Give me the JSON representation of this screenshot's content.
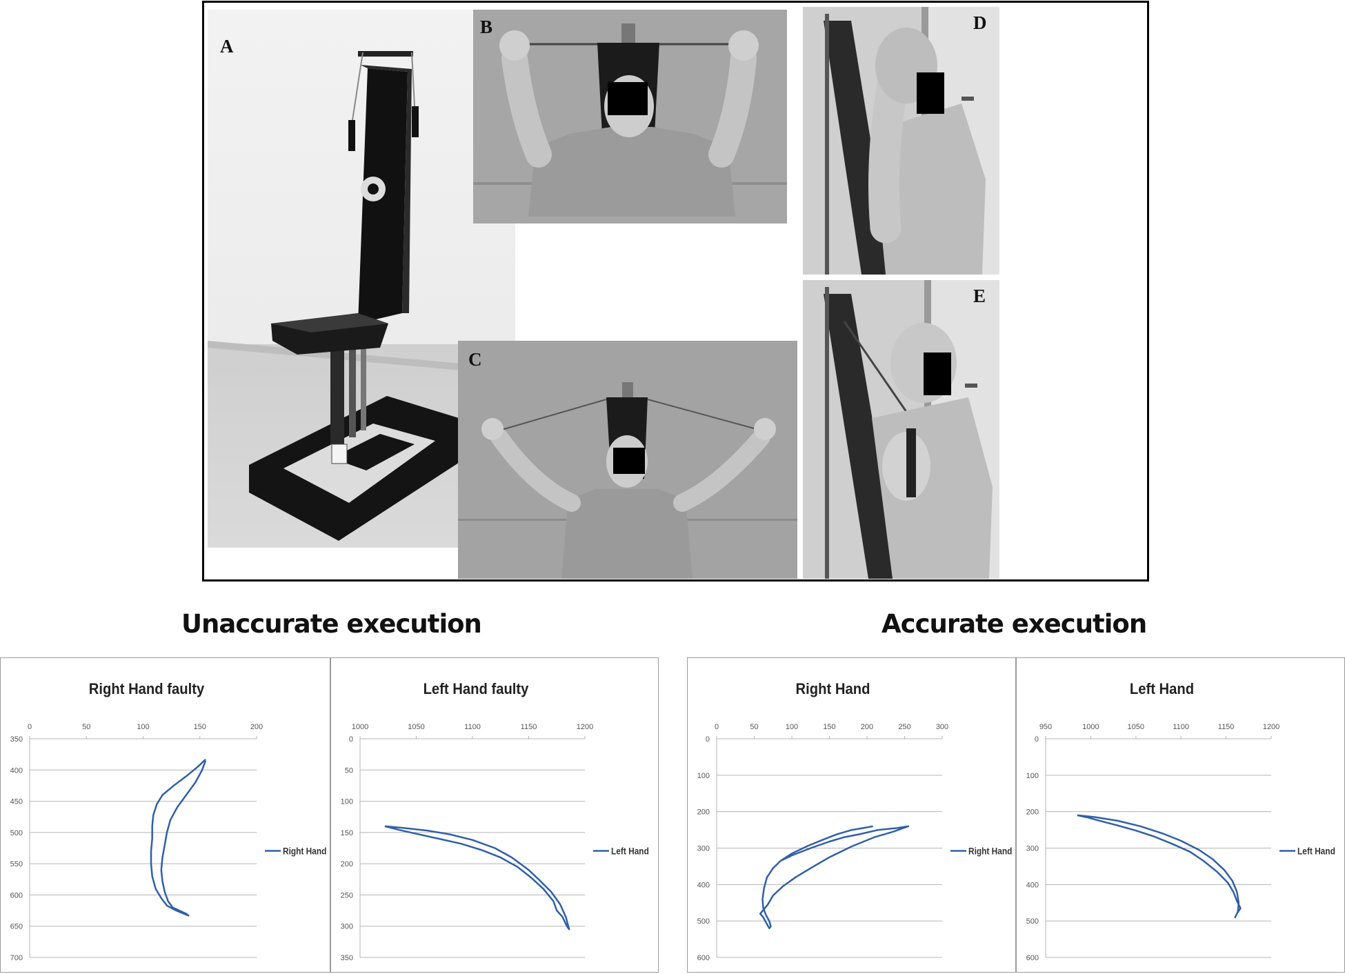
{
  "figure": {
    "panel_labels": [
      "A",
      "B",
      "C",
      "D",
      "E"
    ],
    "section_titles": {
      "left": "Unaccurate execution",
      "right": "Accurate execution"
    }
  },
  "chart_data": [
    {
      "type": "scatter",
      "title": "Right Hand faulty",
      "legend": "Right Hand",
      "legend_position": "right",
      "grid": true,
      "xlim": [
        0,
        200
      ],
      "ylim": [
        350,
        700
      ],
      "x_ticks": [
        0,
        50,
        100,
        150,
        200
      ],
      "y_ticks": [
        350,
        400,
        450,
        500,
        550,
        600,
        650,
        700
      ],
      "y_inverted": true,
      "x_axis_position": "top",
      "color": "#2f5fa8",
      "series": [
        {
          "name": "Right Hand",
          "points": [
            [
              155,
              383
            ],
            [
              148,
              395
            ],
            [
              138,
              410
            ],
            [
              127,
              425
            ],
            [
              117,
              440
            ],
            [
              112,
              455
            ],
            [
              109,
              472
            ],
            [
              108,
              490
            ],
            [
              108,
              510
            ],
            [
              107,
              530
            ],
            [
              107,
              550
            ],
            [
              108,
              570
            ],
            [
              111,
              590
            ],
            [
              116,
              605
            ],
            [
              121,
              617
            ],
            [
              128,
              624
            ],
            [
              136,
              630
            ],
            [
              140,
              633
            ],
            [
              138,
              630
            ],
            [
              132,
              625
            ],
            [
              126,
              620
            ],
            [
              122,
              610
            ],
            [
              119,
              595
            ],
            [
              117,
              578
            ],
            [
              116,
              560
            ],
            [
              117,
              540
            ],
            [
              119,
              520
            ],
            [
              121,
              500
            ],
            [
              124,
              480
            ],
            [
              130,
              460
            ],
            [
              138,
              440
            ],
            [
              146,
              420
            ],
            [
              152,
              400
            ],
            [
              155,
              385
            ]
          ]
        }
      ]
    },
    {
      "type": "scatter",
      "title": "Left Hand faulty",
      "legend": "Left Hand",
      "legend_position": "right",
      "grid": true,
      "xlim": [
        1000,
        1200
      ],
      "ylim": [
        0,
        350
      ],
      "x_ticks": [
        1000,
        1050,
        1100,
        1150,
        1200
      ],
      "y_ticks": [
        0,
        50,
        100,
        150,
        200,
        250,
        300,
        350
      ],
      "y_inverted": true,
      "x_axis_position": "top",
      "color": "#2f5fa8",
      "series": [
        {
          "name": "Left Hand",
          "points": [
            [
              1022,
              140
            ],
            [
              1040,
              143
            ],
            [
              1060,
              147
            ],
            [
              1080,
              153
            ],
            [
              1100,
              162
            ],
            [
              1120,
              175
            ],
            [
              1135,
              190
            ],
            [
              1150,
              210
            ],
            [
              1160,
              227
            ],
            [
              1170,
              245
            ],
            [
              1178,
              265
            ],
            [
              1183,
              285
            ],
            [
              1186,
              305
            ],
            [
              1184,
              300
            ],
            [
              1180,
              285
            ],
            [
              1175,
              275
            ],
            [
              1172,
              260
            ],
            [
              1163,
              240
            ],
            [
              1152,
              222
            ],
            [
              1140,
              205
            ],
            [
              1125,
              190
            ],
            [
              1108,
              178
            ],
            [
              1090,
              168
            ],
            [
              1070,
              160
            ],
            [
              1050,
              152
            ],
            [
              1035,
              146
            ],
            [
              1022,
              140
            ]
          ]
        }
      ]
    },
    {
      "type": "scatter",
      "title": "Right Hand",
      "legend": "Right Hand",
      "legend_position": "right",
      "grid": true,
      "xlim": [
        0,
        300
      ],
      "ylim": [
        0,
        600
      ],
      "x_ticks": [
        0,
        50,
        100,
        150,
        200,
        250,
        300
      ],
      "y_ticks": [
        0,
        100,
        200,
        300,
        400,
        500,
        600
      ],
      "y_inverted": true,
      "x_axis_position": "top",
      "color": "#2f5fa8",
      "series": [
        {
          "name": "Right Hand",
          "points": [
            [
              208,
              240
            ],
            [
              195,
              245
            ],
            [
              180,
              250
            ],
            [
              160,
              262
            ],
            [
              140,
              278
            ],
            [
              120,
              295
            ],
            [
              100,
              315
            ],
            [
              85,
              335
            ],
            [
              75,
              355
            ],
            [
              67,
              380
            ],
            [
              63,
              410
            ],
            [
              61,
              440
            ],
            [
              62,
              465
            ],
            [
              66,
              485
            ],
            [
              70,
              500
            ],
            [
              72,
              515
            ],
            [
              70,
              520
            ],
            [
              66,
              505
            ],
            [
              62,
              490
            ],
            [
              58,
              480
            ],
            [
              62,
              470
            ],
            [
              68,
              455
            ],
            [
              75,
              430
            ],
            [
              88,
              405
            ],
            [
              105,
              380
            ],
            [
              125,
              355
            ],
            [
              150,
              325
            ],
            [
              180,
              295
            ],
            [
              210,
              270
            ],
            [
              235,
              255
            ],
            [
              255,
              240
            ],
            [
              240,
              245
            ],
            [
              215,
              250
            ],
            [
              190,
              262
            ],
            [
              170,
              270
            ],
            [
              150,
              282
            ],
            [
              125,
              300
            ],
            [
              100,
              320
            ],
            [
              85,
              335
            ]
          ]
        }
      ]
    },
    {
      "type": "scatter",
      "title": "Left Hand",
      "legend": "Left Hand",
      "legend_position": "right",
      "grid": true,
      "xlim": [
        950,
        1200
      ],
      "ylim": [
        0,
        600
      ],
      "x_ticks": [
        950,
        1000,
        1050,
        1100,
        1150,
        1200
      ],
      "y_ticks": [
        0,
        100,
        200,
        300,
        400,
        500,
        600
      ],
      "y_inverted": true,
      "x_axis_position": "top",
      "color": "#2f5fa8",
      "series": [
        {
          "name": "Left Hand",
          "points": [
            [
              985,
              210
            ],
            [
              1005,
              215
            ],
            [
              1030,
              225
            ],
            [
              1055,
              240
            ],
            [
              1080,
              260
            ],
            [
              1100,
              280
            ],
            [
              1120,
              305
            ],
            [
              1135,
              330
            ],
            [
              1148,
              360
            ],
            [
              1157,
              390
            ],
            [
              1162,
              420
            ],
            [
              1164,
              450
            ],
            [
              1163,
              475
            ],
            [
              1160,
              490
            ],
            [
              1162,
              480
            ],
            [
              1166,
              465
            ],
            [
              1162,
              445
            ],
            [
              1158,
              420
            ],
            [
              1152,
              395
            ],
            [
              1140,
              365
            ],
            [
              1125,
              335
            ],
            [
              1110,
              310
            ],
            [
              1090,
              288
            ],
            [
              1070,
              268
            ],
            [
              1050,
              252
            ],
            [
              1030,
              238
            ],
            [
              1010,
              225
            ],
            [
              995,
              215
            ],
            [
              985,
              210
            ]
          ]
        }
      ]
    }
  ]
}
